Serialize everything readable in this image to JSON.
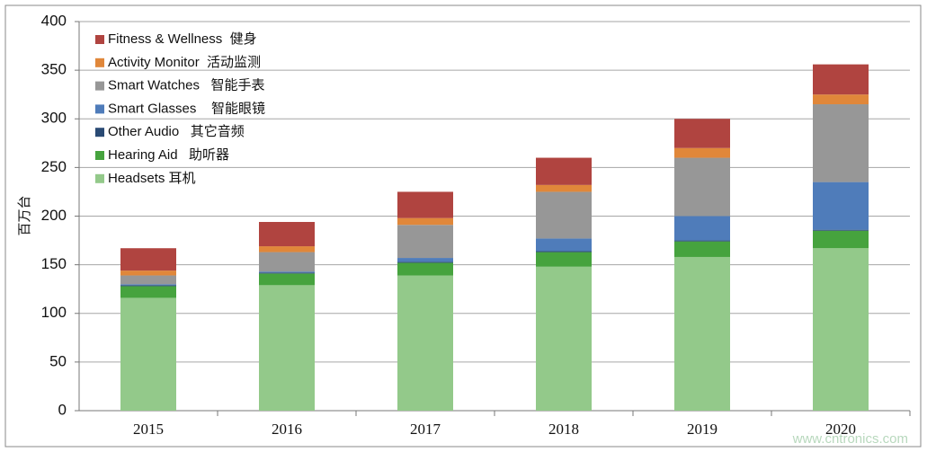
{
  "chart_data": {
    "type": "stacked-bar",
    "y_label": "百万台",
    "categories": [
      "2015",
      "2016",
      "2017",
      "2018",
      "2019",
      "2020"
    ],
    "series": [
      {
        "name": "Headsets 耳机",
        "color": "#93c98a",
        "values": [
          116,
          129,
          139,
          148,
          158,
          167
        ]
      },
      {
        "name": "Hearing Aid   助听器",
        "color": "#46a33e",
        "values": [
          12,
          12,
          13,
          15,
          16,
          18
        ]
      },
      {
        "name": "Other Audio   其它音频",
        "color": "#2a4a74",
        "values": [
          1,
          1,
          1,
          1,
          1,
          1
        ]
      },
      {
        "name": "Smart Glasses    智能眼镜",
        "color": "#4f7cba",
        "values": [
          1,
          1,
          4,
          13,
          25,
          49
        ]
      },
      {
        "name": "Smart Watches   智能手表",
        "color": "#979797",
        "values": [
          9,
          20,
          34,
          48,
          60,
          80
        ]
      },
      {
        "name": "Activity Monitor  活动监测",
        "color": "#e0873a",
        "values": [
          5,
          6,
          7,
          7,
          10,
          10
        ]
      },
      {
        "name": "Fitness & Wellness  健身",
        "color": "#b04440",
        "values": [
          23,
          25,
          27,
          28,
          30,
          31
        ]
      }
    ],
    "ylim": [
      0,
      400
    ],
    "yticks": [
      0,
      50,
      100,
      150,
      200,
      250,
      300,
      350,
      400
    ],
    "grid": true,
    "watermark": "www.cntronics.com"
  }
}
